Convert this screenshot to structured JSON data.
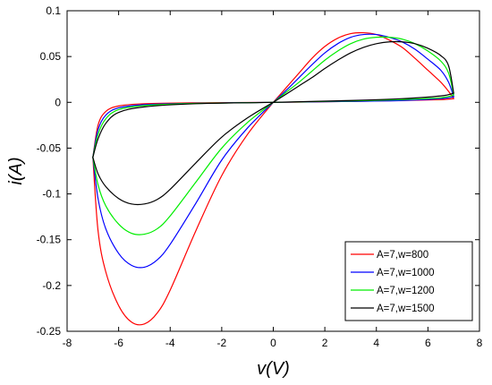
{
  "chart_data": {
    "type": "line",
    "xlabel": "v(V)",
    "ylabel": "i(A)",
    "xlim": [
      -8,
      8
    ],
    "ylim": [
      -0.25,
      0.1
    ],
    "xticks": [
      "-8",
      "-6",
      "-4",
      "-2",
      "0",
      "2",
      "4",
      "6",
      "8"
    ],
    "yticks": [
      "-0.25",
      "-0.2",
      "-0.15",
      "-0.1",
      "-0.05",
      "0",
      "0.05",
      "0.1"
    ],
    "grid": false,
    "legend_position": "bottom-right",
    "series": [
      {
        "name": "A=7,w=800",
        "color": "#ff0000",
        "lower_branch": [
          [
            0,
            0
          ],
          [
            -1,
            -0.035
          ],
          [
            -2,
            -0.08
          ],
          [
            -3,
            -0.14
          ],
          [
            -4,
            -0.205
          ],
          [
            -4.5,
            -0.23
          ],
          [
            -5,
            -0.242
          ],
          [
            -5.5,
            -0.24
          ],
          [
            -6,
            -0.222
          ],
          [
            -6.5,
            -0.185
          ],
          [
            -6.8,
            -0.14
          ],
          [
            -7,
            -0.06
          ]
        ],
        "return_branch": [
          [
            -7,
            -0.06
          ],
          [
            -6.8,
            -0.025
          ],
          [
            -6.5,
            -0.01
          ],
          [
            -6,
            -0.004
          ],
          [
            -5,
            -0.0015
          ],
          [
            -3,
            -0.0005
          ],
          [
            0,
            0
          ],
          [
            3,
            0.001
          ],
          [
            5,
            0.002
          ],
          [
            6.5,
            0.003
          ],
          [
            7,
            0.004
          ]
        ],
        "upper_branch": [
          [
            0,
            0
          ],
          [
            0.5,
            0.016
          ],
          [
            1,
            0.032
          ],
          [
            1.5,
            0.048
          ],
          [
            2,
            0.061
          ],
          [
            2.5,
            0.07
          ],
          [
            3,
            0.075
          ],
          [
            3.5,
            0.076
          ],
          [
            4,
            0.074
          ],
          [
            4.5,
            0.068
          ],
          [
            5,
            0.06
          ],
          [
            5.5,
            0.048
          ],
          [
            6,
            0.035
          ],
          [
            6.5,
            0.022
          ],
          [
            6.8,
            0.012
          ],
          [
            7,
            0.004
          ]
        ]
      },
      {
        "name": "A=7,w=1000",
        "color": "#0000ff",
        "lower_branch": [
          [
            0,
            0
          ],
          [
            -1,
            -0.028
          ],
          [
            -2,
            -0.063
          ],
          [
            -3,
            -0.11
          ],
          [
            -4,
            -0.155
          ],
          [
            -4.5,
            -0.172
          ],
          [
            -5,
            -0.18
          ],
          [
            -5.5,
            -0.178
          ],
          [
            -6,
            -0.165
          ],
          [
            -6.5,
            -0.138
          ],
          [
            -6.8,
            -0.105
          ],
          [
            -7,
            -0.06
          ]
        ],
        "return_branch": [
          [
            -7,
            -0.06
          ],
          [
            -6.8,
            -0.03
          ],
          [
            -6.5,
            -0.014
          ],
          [
            -6,
            -0.006
          ],
          [
            -5,
            -0.0025
          ],
          [
            -3,
            -0.001
          ],
          [
            0,
            0
          ],
          [
            3,
            0.001
          ],
          [
            5,
            0.002
          ],
          [
            6.5,
            0.004
          ],
          [
            7,
            0.006
          ]
        ],
        "upper_branch": [
          [
            0,
            0
          ],
          [
            0.5,
            0.013
          ],
          [
            1,
            0.027
          ],
          [
            1.5,
            0.041
          ],
          [
            2,
            0.054
          ],
          [
            2.5,
            0.064
          ],
          [
            3,
            0.071
          ],
          [
            3.5,
            0.074
          ],
          [
            4,
            0.074
          ],
          [
            4.5,
            0.071
          ],
          [
            5,
            0.066
          ],
          [
            5.5,
            0.058
          ],
          [
            6,
            0.047
          ],
          [
            6.5,
            0.035
          ],
          [
            6.8,
            0.022
          ],
          [
            7,
            0.006
          ]
        ]
      },
      {
        "name": "A=7,w=1200",
        "color": "#00ee00",
        "lower_branch": [
          [
            0,
            0
          ],
          [
            -1,
            -0.022
          ],
          [
            -2,
            -0.05
          ],
          [
            -3,
            -0.087
          ],
          [
            -4,
            -0.124
          ],
          [
            -4.5,
            -0.138
          ],
          [
            -5,
            -0.144
          ],
          [
            -5.5,
            -0.143
          ],
          [
            -6,
            -0.133
          ],
          [
            -6.5,
            -0.113
          ],
          [
            -6.8,
            -0.09
          ],
          [
            -7,
            -0.06
          ]
        ],
        "return_branch": [
          [
            -7,
            -0.06
          ],
          [
            -6.8,
            -0.035
          ],
          [
            -6.5,
            -0.018
          ],
          [
            -6,
            -0.008
          ],
          [
            -5,
            -0.0035
          ],
          [
            -3,
            -0.0012
          ],
          [
            0,
            0
          ],
          [
            3,
            0.0015
          ],
          [
            5,
            0.003
          ],
          [
            6.5,
            0.005
          ],
          [
            7,
            0.008
          ]
        ],
        "upper_branch": [
          [
            0,
            0
          ],
          [
            0.5,
            0.011
          ],
          [
            1,
            0.022
          ],
          [
            1.5,
            0.034
          ],
          [
            2,
            0.046
          ],
          [
            2.5,
            0.056
          ],
          [
            3,
            0.064
          ],
          [
            3.5,
            0.069
          ],
          [
            4,
            0.071
          ],
          [
            4.5,
            0.071
          ],
          [
            5,
            0.069
          ],
          [
            5.5,
            0.064
          ],
          [
            6,
            0.056
          ],
          [
            6.5,
            0.045
          ],
          [
            6.8,
            0.032
          ],
          [
            7,
            0.008
          ]
        ]
      },
      {
        "name": "A=7,w=1500",
        "color": "#000000",
        "lower_branch": [
          [
            0,
            0
          ],
          [
            -1,
            -0.017
          ],
          [
            -2,
            -0.038
          ],
          [
            -3,
            -0.066
          ],
          [
            -4,
            -0.095
          ],
          [
            -4.5,
            -0.106
          ],
          [
            -5,
            -0.111
          ],
          [
            -5.5,
            -0.111
          ],
          [
            -6,
            -0.105
          ],
          [
            -6.5,
            -0.092
          ],
          [
            -6.8,
            -0.078
          ],
          [
            -7,
            -0.06
          ]
        ],
        "return_branch": [
          [
            -7,
            -0.06
          ],
          [
            -6.8,
            -0.04
          ],
          [
            -6.5,
            -0.023
          ],
          [
            -6,
            -0.011
          ],
          [
            -5,
            -0.005
          ],
          [
            -3,
            -0.0015
          ],
          [
            0,
            0
          ],
          [
            3,
            0.002
          ],
          [
            5,
            0.004
          ],
          [
            6.5,
            0.007
          ],
          [
            7,
            0.01
          ]
        ],
        "upper_branch": [
          [
            0,
            0
          ],
          [
            0.5,
            0.009
          ],
          [
            1,
            0.018
          ],
          [
            1.5,
            0.027
          ],
          [
            2,
            0.037
          ],
          [
            2.5,
            0.046
          ],
          [
            3,
            0.054
          ],
          [
            3.5,
            0.06
          ],
          [
            4,
            0.064
          ],
          [
            4.5,
            0.066
          ],
          [
            5,
            0.066
          ],
          [
            5.5,
            0.064
          ],
          [
            6,
            0.059
          ],
          [
            6.5,
            0.051
          ],
          [
            6.8,
            0.04
          ],
          [
            7,
            0.01
          ]
        ]
      }
    ]
  }
}
